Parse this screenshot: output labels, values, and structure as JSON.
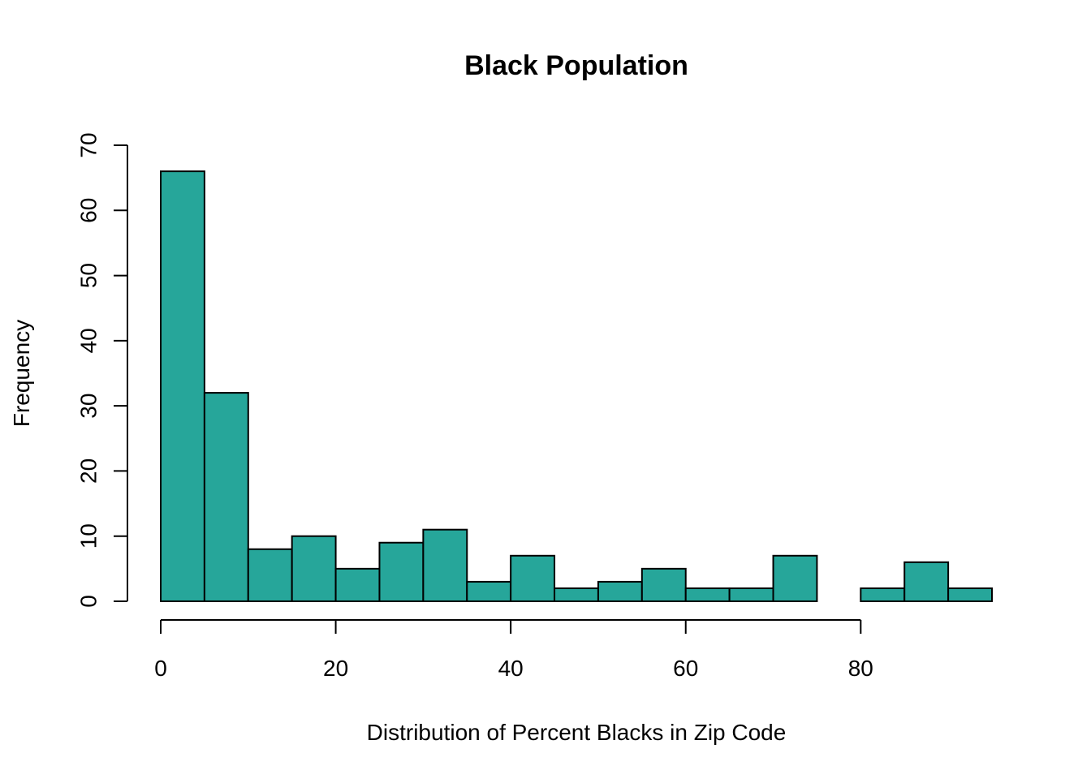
{
  "chart_data": {
    "type": "bar",
    "title": "Black Population",
    "xlabel": "Distribution of Percent Blacks in Zip Code",
    "ylabel": "Frequency",
    "bin_edges": [
      0,
      5,
      10,
      15,
      20,
      25,
      30,
      35,
      40,
      45,
      50,
      55,
      60,
      65,
      70,
      75,
      80,
      85,
      90,
      95
    ],
    "values": [
      66,
      32,
      8,
      10,
      5,
      9,
      11,
      3,
      7,
      2,
      3,
      5,
      2,
      2,
      7,
      0,
      2,
      6,
      2
    ],
    "xlim": [
      0,
      95
    ],
    "ylim": [
      0,
      70
    ],
    "x_ticks": [
      0,
      20,
      40,
      60,
      80
    ],
    "y_ticks": [
      0,
      10,
      20,
      30,
      40,
      50,
      60,
      70
    ],
    "bar_color": "#26A69A",
    "grid": false
  }
}
